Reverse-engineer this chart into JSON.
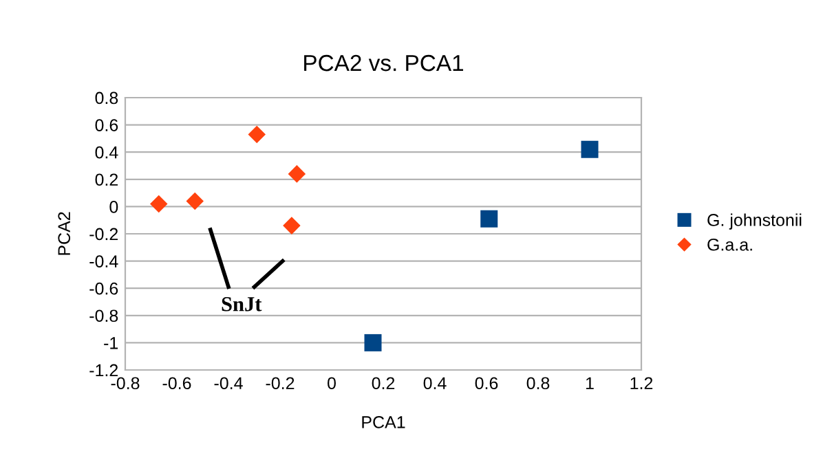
{
  "chart_data": {
    "type": "scatter",
    "title": "PCA2 vs. PCA1",
    "xlabel": "PCA1",
    "ylabel": "PCA2",
    "series": [
      {
        "name": "G. johnstonii",
        "color": "#004586",
        "marker": "square",
        "x": [
          1.0,
          0.61,
          0.16
        ],
        "values": [
          0.42,
          -0.09,
          -1.0
        ]
      },
      {
        "name": "G.a.a.",
        "color": "#ff420e",
        "marker": "diamond",
        "x": [
          -0.67,
          -0.53,
          -0.29,
          -0.135,
          -0.155
        ],
        "values": [
          0.02,
          0.04,
          0.53,
          0.24,
          -0.14
        ]
      }
    ],
    "annotations": [
      "SnJt"
    ],
    "xlim": [
      -0.8,
      1.2
    ],
    "xticks": [
      -0.8,
      -0.6,
      -0.4,
      -0.2,
      0,
      0.2,
      0.4,
      0.6,
      0.8,
      1,
      1.2
    ],
    "ylim": [
      -1.2,
      0.8
    ],
    "yticks": [
      -1.2,
      -1,
      -0.8,
      -0.6,
      -0.4,
      -0.2,
      0,
      0.2,
      0.4,
      0.6,
      0.8
    ],
    "grid": "y",
    "legend": "right"
  }
}
